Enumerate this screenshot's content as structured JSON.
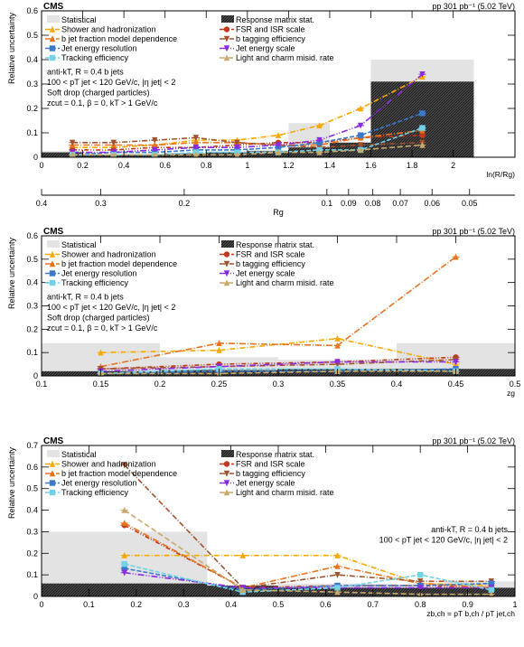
{
  "chart_data": [
    {
      "type": "line",
      "header_left": "CMS",
      "header_right": "pp 301 pb⁻¹ (5.02 TeV)",
      "ylabel": "Relative uncertainty",
      "xlabel": "ln(R/Rg)",
      "xlim": [
        0,
        2.3
      ],
      "ylim": [
        0,
        0.6
      ],
      "xticks": [
        "0",
        "0.2",
        "0.4",
        "0.6",
        "0.8",
        "1",
        "1.2",
        "1.4",
        "1.6",
        "1.8",
        "2"
      ],
      "yticks": [
        "0",
        "0.1",
        "0.2",
        "0.3",
        "0.4",
        "0.5",
        "0.6"
      ],
      "secondary_axis": {
        "label": "Rg",
        "ticks": [
          "0.4",
          "0.3",
          "0.2",
          "0.1",
          "0.09",
          "0.08",
          "0.07",
          "0.06",
          "0.05"
        ]
      },
      "annotations": [
        "anti-kT, R = 0.4 b jets",
        "100 < pT jet < 120 GeV/c, |η jet| < 2",
        "Soft drop (charged particles)",
        "zcut = 0.1, β = 0, kT > 1 GeV/c"
      ],
      "bins": [
        0,
        0.2,
        0.4,
        0.6,
        0.8,
        1.0,
        1.2,
        1.4,
        1.6,
        2.1
      ],
      "statistical": [
        0.025,
        0.01,
        0.015,
        0.02,
        0.025,
        0.03,
        0.14,
        0.06,
        0.4
      ],
      "response_stat": [
        0.02,
        0.01,
        0.01,
        0.015,
        0.02,
        0.025,
        0.04,
        0.06,
        0.31
      ],
      "x": [
        0.15,
        0.35,
        0.55,
        0.75,
        0.95,
        1.15,
        1.35,
        1.55,
        1.85
      ],
      "series": [
        {
          "name": "Shower and hadronization",
          "values": [
            0.04,
            0.04,
            0.05,
            0.07,
            0.07,
            0.09,
            0.13,
            0.2,
            0.33
          ]
        },
        {
          "name": "FSR and ISR scale",
          "values": [
            0.03,
            0.03,
            0.04,
            0.04,
            0.05,
            0.06,
            0.06,
            0.08,
            0.09
          ]
        },
        {
          "name": "b jet fraction model dependence",
          "values": [
            0.05,
            0.05,
            0.05,
            0.06,
            0.06,
            0.05,
            0.05,
            0.08,
            0.11
          ]
        },
        {
          "name": "b tagging efficiency",
          "values": [
            0.06,
            0.06,
            0.07,
            0.08,
            0.06,
            0.05,
            0.04,
            0.05,
            0.06
          ]
        },
        {
          "name": "Jet energy resolution",
          "values": [
            0.01,
            0.02,
            0.02,
            0.03,
            0.03,
            0.04,
            0.06,
            0.09,
            0.18
          ]
        },
        {
          "name": "Jet energy scale",
          "values": [
            0.02,
            0.02,
            0.03,
            0.04,
            0.04,
            0.05,
            0.07,
            0.13,
            0.34
          ]
        },
        {
          "name": "Tracking efficiency",
          "values": [
            0.01,
            0.01,
            0.01,
            0.02,
            0.02,
            0.02,
            0.03,
            0.03,
            0.12
          ]
        },
        {
          "name": "Light and charm misid. rate",
          "values": [
            0.01,
            0.01,
            0.01,
            0.01,
            0.01,
            0.02,
            0.02,
            0.03,
            0.05
          ]
        }
      ]
    },
    {
      "type": "line",
      "header_left": "CMS",
      "header_right": "pp 301 pb⁻¹ (5.02 TeV)",
      "ylabel": "Relative uncertainty",
      "xlabel": "zg",
      "xlim": [
        0.1,
        0.5
      ],
      "ylim": [
        0,
        0.6
      ],
      "xticks": [
        "0.1",
        "0.15",
        "0.2",
        "0.25",
        "0.3",
        "0.35",
        "0.4",
        "0.45",
        "0.5"
      ],
      "yticks": [
        "0",
        "0.1",
        "0.2",
        "0.3",
        "0.4",
        "0.5",
        "0.6"
      ],
      "annotations": [
        "anti-kT, R = 0.4 b jets",
        "100 < pT jet < 120 GeV/c, |η jet| < 2",
        "Soft drop (charged particles)",
        "zcut = 0.1, β = 0, kT > 1 GeV/c"
      ],
      "bins": [
        0.1,
        0.2,
        0.3,
        0.4,
        0.5
      ],
      "statistical": [
        0.14,
        0.08,
        0.07,
        0.14
      ],
      "response_stat": [
        0.02,
        0.025,
        0.03,
        0.03
      ],
      "x": [
        0.15,
        0.25,
        0.35,
        0.45
      ],
      "series": [
        {
          "name": "Shower and hadronization",
          "values": [
            0.1,
            0.11,
            0.16,
            0.05
          ]
        },
        {
          "name": "FSR and ISR scale",
          "values": [
            0.03,
            0.05,
            0.06,
            0.08
          ]
        },
        {
          "name": "b jet fraction model dependence",
          "values": [
            0.04,
            0.14,
            0.13,
            0.51
          ]
        },
        {
          "name": "b tagging efficiency",
          "values": [
            0.03,
            0.04,
            0.05,
            0.07
          ]
        },
        {
          "name": "Jet energy resolution",
          "values": [
            0.01,
            0.02,
            0.02,
            0.03
          ]
        },
        {
          "name": "Jet energy scale",
          "values": [
            0.02,
            0.04,
            0.06,
            0.06
          ]
        },
        {
          "name": "Tracking efficiency",
          "values": [
            0.01,
            0.03,
            0.03,
            0.02
          ]
        },
        {
          "name": "Light and charm misid. rate",
          "values": [
            0.01,
            0.01,
            0.02,
            0.02
          ]
        }
      ]
    },
    {
      "type": "line",
      "header_left": "CMS",
      "header_right": "pp 301 pb⁻¹ (5.02 TeV)",
      "ylabel": "Relative uncertainty",
      "xlabel": "zb,ch = pT b,ch / pT jet,ch",
      "xlim": [
        0,
        1
      ],
      "ylim": [
        0,
        0.7
      ],
      "xticks": [
        "0",
        "0.1",
        "0.2",
        "0.3",
        "0.4",
        "0.5",
        "0.6",
        "0.7",
        "0.8",
        "0.9",
        "1"
      ],
      "yticks": [
        "0",
        "0.1",
        "0.2",
        "0.3",
        "0.4",
        "0.5",
        "0.6",
        "0.7"
      ],
      "annotations": [
        "anti-kT, R = 0.4 b jets",
        "100 < pT jet < 120 GeV/c, |η jet| < 2"
      ],
      "bins": [
        0,
        0.35,
        0.5,
        0.75,
        0.85,
        1.0
      ],
      "statistical": [
        0.3,
        0.05,
        0.06,
        0.04,
        0.07
      ],
      "response_stat": [
        0.06,
        0.05,
        0.04,
        0.04,
        0.04
      ],
      "x": [
        0.175,
        0.425,
        0.625,
        0.8,
        0.95
      ],
      "series": [
        {
          "name": "Shower and hadronization",
          "values": [
            0.19,
            0.19,
            0.19,
            0.06,
            0.05
          ]
        },
        {
          "name": "FSR and ISR scale",
          "values": [
            0.33,
            0.04,
            0.05,
            0.05,
            0.04
          ]
        },
        {
          "name": "b jet fraction model dependence",
          "values": [
            0.34,
            0.04,
            0.14,
            0.06,
            0.04
          ]
        },
        {
          "name": "b tagging efficiency",
          "values": [
            0.61,
            0.04,
            0.1,
            0.07,
            0.07
          ]
        },
        {
          "name": "Jet energy resolution",
          "values": [
            0.13,
            0.03,
            0.05,
            0.05,
            0.06
          ]
        },
        {
          "name": "Jet energy scale",
          "values": [
            0.11,
            0.04,
            0.04,
            0.04,
            0.04
          ]
        },
        {
          "name": "Tracking efficiency",
          "values": [
            0.15,
            0.02,
            0.04,
            0.1,
            0.03
          ]
        },
        {
          "name": "Light and charm misid. rate",
          "values": [
            0.4,
            0.03,
            0.02,
            0.01,
            0.01
          ]
        }
      ]
    }
  ],
  "legend": {
    "statistical": "Statistical",
    "response_stat": "Response matrix stat."
  },
  "colors": {
    "Shower and hadronization": "#f5a800",
    "FSR and ISR scale": "#c0391b",
    "b jet fraction model dependence": "#e8731f",
    "b tagging efficiency": "#a0522d",
    "Jet energy resolution": "#3a78c9",
    "Jet energy scale": "#8a2be2",
    "Tracking efficiency": "#72d2e8",
    "Light and charm misid. rate": "#c8a86b",
    "statistical": "#e3e3e3",
    "response_stat": "#3a3a3a"
  }
}
